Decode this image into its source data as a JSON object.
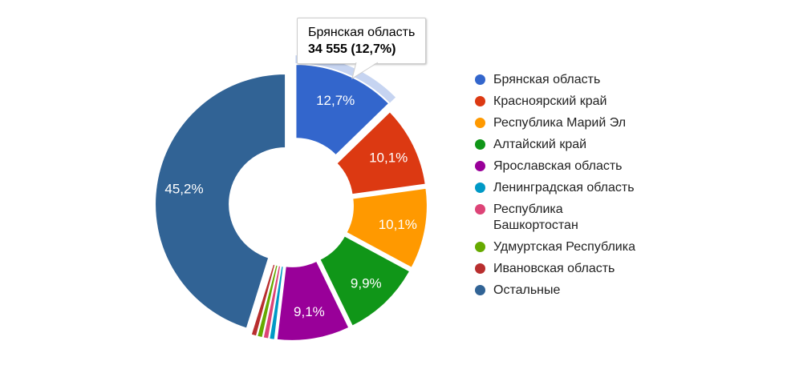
{
  "chart_data": {
    "type": "pie",
    "subtype": "donut",
    "legend_position": "right",
    "background_color": "#ffffff",
    "start_angle_deg": 0,
    "direction": "clockwise",
    "highlight": {
      "slice": "Брянская область",
      "halo_opacity": 0.28
    },
    "slices": [
      {
        "name": "Брянская область",
        "percent": 12.7,
        "label": "12,7%",
        "color": "#3366CC",
        "value": "34 555",
        "highlighted": true
      },
      {
        "name": "Красноярский край",
        "percent": 10.1,
        "label": "10,1%",
        "color": "#DC3912"
      },
      {
        "name": "Республика Марий Эл",
        "percent": 10.1,
        "label": "10,1%",
        "color": "#FF9900"
      },
      {
        "name": "Алтайский край",
        "percent": 9.9,
        "label": "9,9%",
        "color": "#109618"
      },
      {
        "name": "Ярославская область",
        "percent": 9.1,
        "label": "9,1%",
        "color": "#990099"
      },
      {
        "name": "Ленинградская область",
        "percent": 0.725,
        "label": "",
        "color": "#0099C6"
      },
      {
        "name": "Республика Башкортостан",
        "percent": 0.725,
        "label": "",
        "color": "#DD4477"
      },
      {
        "name": "Удмуртская Республика",
        "percent": 0.725,
        "label": "",
        "color": "#66AA00"
      },
      {
        "name": "Ивановская область",
        "percent": 0.725,
        "label": "",
        "color": "#B82E2E"
      },
      {
        "name": "Остальные",
        "percent": 45.2,
        "label": "45,2%",
        "color": "#316395"
      }
    ]
  },
  "tooltip": {
    "title": "Брянская область",
    "value_line": "34 555 (12,7%)"
  }
}
